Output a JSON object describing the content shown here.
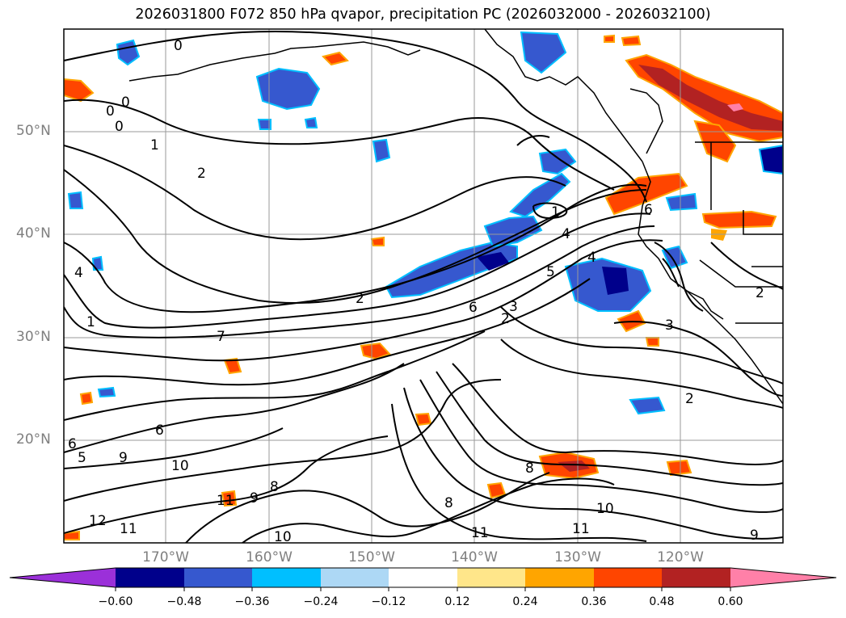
{
  "title": "2026031800 F072 850 hPa qvapor, precipitation PC (2026032000 - 2026032100)",
  "map": {
    "lat_labels": [
      "50°N",
      "40°N",
      "30°N",
      "20°N"
    ],
    "lon_labels": [
      "170°W",
      "160°W",
      "150°W",
      "140°W",
      "130°W",
      "120°W"
    ],
    "contour_labels": [
      {
        "text": "0"
      },
      {
        "text": "0"
      },
      {
        "text": "0"
      },
      {
        "text": "0"
      },
      {
        "text": "1"
      },
      {
        "text": "2"
      },
      {
        "text": "2"
      },
      {
        "text": "1"
      },
      {
        "text": "4"
      },
      {
        "text": "5"
      },
      {
        "text": "4"
      },
      {
        "text": "6"
      },
      {
        "text": "3"
      },
      {
        "text": "2"
      },
      {
        "text": "6"
      },
      {
        "text": "7"
      },
      {
        "text": "4"
      },
      {
        "text": "1"
      },
      {
        "text": "3"
      },
      {
        "text": "2"
      },
      {
        "text": "6"
      },
      {
        "text": "6"
      },
      {
        "text": "5"
      },
      {
        "text": "9"
      },
      {
        "text": "10"
      },
      {
        "text": "9"
      },
      {
        "text": "8"
      },
      {
        "text": "11"
      },
      {
        "text": "8"
      },
      {
        "text": "8"
      },
      {
        "text": "11"
      },
      {
        "text": "12"
      },
      {
        "text": "11"
      },
      {
        "text": "10"
      },
      {
        "text": "11"
      },
      {
        "text": "10"
      },
      {
        "text": "9"
      },
      {
        "text": "2"
      }
    ]
  },
  "colorbar": {
    "colors": [
      "#9b30d9",
      "#00008b",
      "#3658cf",
      "#00bfff",
      "#add8f5",
      "#ffffff",
      "#ffe68a",
      "#ffa500",
      "#ff4500",
      "#b22222",
      "#ff80a8"
    ],
    "ticks": [
      "−0.60",
      "−0.48",
      "−0.36",
      "−0.24",
      "−0.12",
      "0.12",
      "0.24",
      "0.36",
      "0.48",
      "0.60"
    ]
  }
}
